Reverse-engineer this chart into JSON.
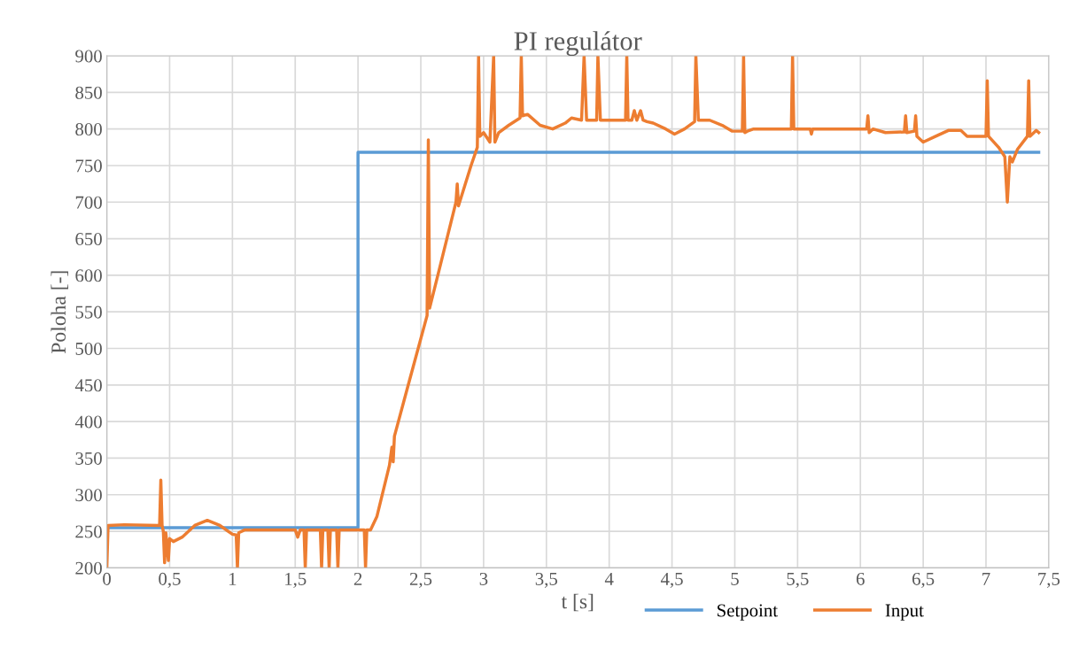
{
  "chart_data": {
    "type": "line",
    "title": "PI regulátor",
    "xlabel": "t [s]",
    "ylabel": "Poloha [-]",
    "xlim": [
      0,
      7.5
    ],
    "ylim": [
      200,
      900
    ],
    "xticks": [
      0,
      {
        "value": 0.5,
        "label": "0,5"
      },
      1,
      {
        "value": 1.5,
        "label": "1,5"
      },
      2,
      {
        "value": 2.5,
        "label": "2,5"
      },
      3,
      {
        "value": 3.5,
        "label": "3,5"
      },
      4,
      {
        "value": 4.5,
        "label": "4,5"
      },
      5,
      {
        "value": 5.5,
        "label": "5,5"
      },
      6,
      {
        "value": 6.5,
        "label": "6,5"
      },
      7,
      {
        "value": 7.5,
        "label": "7,5"
      }
    ],
    "yticks": [
      200,
      250,
      300,
      350,
      400,
      450,
      500,
      550,
      600,
      650,
      700,
      750,
      800,
      850,
      900
    ],
    "grid": true,
    "legend": "bottom",
    "marker": "none",
    "line_style": "solid",
    "series": [
      {
        "name": "Setpoint",
        "color": "#5b9bd5",
        "x": [
          0,
          2.0,
          2.0,
          7.42
        ],
        "values": [
          255,
          255,
          768,
          768
        ]
      },
      {
        "name": "Input",
        "color": "#ed7d31",
        "x": [
          0,
          0.01,
          0.14,
          0.42,
          0.43,
          0.44,
          0.45,
          0.46,
          0.47,
          0.49,
          0.5,
          0.53,
          0.6,
          0.7,
          0.8,
          0.9,
          1.0,
          1.03,
          1.04,
          1.05,
          1.1,
          1.5,
          1.52,
          1.54,
          1.57,
          1.58,
          1.59,
          1.7,
          1.71,
          1.72,
          1.76,
          1.77,
          1.78,
          1.83,
          1.84,
          1.85,
          2.05,
          2.06,
          2.07,
          2.1,
          2.15,
          2.25,
          2.27,
          2.28,
          2.29,
          2.4,
          2.55,
          2.56,
          2.57,
          2.65,
          2.78,
          2.79,
          2.8,
          2.9,
          2.95,
          2.96,
          2.97,
          3.0,
          3.05,
          3.08,
          3.09,
          3.12,
          3.2,
          3.29,
          3.3,
          3.31,
          3.35,
          3.45,
          3.55,
          3.65,
          3.7,
          3.78,
          3.8,
          3.82,
          3.9,
          3.91,
          3.93,
          4.13,
          4.14,
          4.15,
          4.18,
          4.2,
          4.22,
          4.25,
          4.27,
          4.3,
          4.35,
          4.45,
          4.52,
          4.6,
          4.68,
          4.69,
          4.71,
          4.8,
          4.9,
          4.98,
          5.06,
          5.07,
          5.08,
          5.1,
          5.15,
          5.45,
          5.46,
          5.47,
          5.6,
          5.61,
          5.62,
          6.05,
          6.06,
          6.07,
          6.1,
          6.2,
          6.35,
          6.36,
          6.37,
          6.43,
          6.44,
          6.45,
          6.5,
          6.6,
          6.7,
          6.8,
          6.85,
          7.0,
          7.01,
          7.02,
          7.1,
          7.15,
          7.17,
          7.19,
          7.21,
          7.25,
          7.33,
          7.34,
          7.35,
          7.4,
          7.42
        ],
        "values": [
          200,
          258,
          259,
          258,
          320,
          258,
          250,
          207,
          248,
          210,
          240,
          236,
          242,
          258,
          265,
          258,
          246,
          245,
          200,
          248,
          252,
          252,
          242,
          252,
          252,
          200,
          252,
          252,
          200,
          252,
          252,
          200,
          252,
          252,
          200,
          252,
          252,
          200,
          252,
          252,
          270,
          340,
          365,
          345,
          380,
          450,
          545,
          785,
          555,
          610,
          700,
          725,
          695,
          750,
          775,
          900,
          790,
          795,
          782,
          900,
          782,
          795,
          805,
          815,
          900,
          818,
          820,
          805,
          800,
          808,
          815,
          812,
          900,
          812,
          812,
          900,
          812,
          812,
          900,
          812,
          812,
          825,
          812,
          825,
          812,
          810,
          808,
          800,
          793,
          800,
          810,
          900,
          812,
          812,
          805,
          797,
          797,
          900,
          795,
          797,
          800,
          800,
          900,
          800,
          800,
          793,
          800,
          800,
          818,
          795,
          800,
          795,
          796,
          818,
          795,
          797,
          818,
          790,
          782,
          790,
          798,
          798,
          790,
          790,
          866,
          790,
          775,
          762,
          700,
          762,
          755,
          772,
          790,
          866,
          790,
          798,
          795
        ]
      }
    ]
  }
}
